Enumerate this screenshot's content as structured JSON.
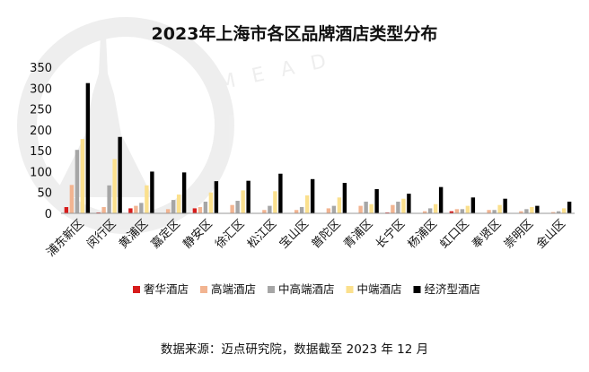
{
  "watermark": {
    "text": "M E A D",
    "shape": "tower-silhouette"
  },
  "source_note": "数据来源：迈点研究院，数据截至 2023 年 12 月",
  "chart_data": {
    "type": "bar",
    "title": "2023年上海市各区品牌酒店类型分布",
    "xlabel": "",
    "ylabel": "",
    "ylim": [
      0,
      350
    ],
    "yticks": [
      0,
      50,
      100,
      150,
      200,
      250,
      300,
      350
    ],
    "grid": false,
    "legend_position": "bottom",
    "categories": [
      "浦东新区",
      "闵行区",
      "黄浦区",
      "嘉定区",
      "静安区",
      "徐汇区",
      "松江区",
      "宝山区",
      "普陀区",
      "青浦区",
      "长宁区",
      "杨浦区",
      "虹口区",
      "奉贤区",
      "崇明区",
      "金山区"
    ],
    "series": [
      {
        "name": "奢华酒店",
        "color": "#d71c1c",
        "values": [
          15,
          2,
          12,
          1,
          12,
          1,
          1,
          1,
          1,
          1,
          2,
          1,
          5,
          1,
          1,
          1
        ]
      },
      {
        "name": "高端酒店",
        "color": "#f2b491",
        "values": [
          68,
          15,
          18,
          10,
          15,
          20,
          8,
          8,
          12,
          18,
          20,
          5,
          10,
          8,
          5,
          3
        ]
      },
      {
        "name": "中高端酒店",
        "color": "#a6a6a6",
        "values": [
          152,
          67,
          25,
          32,
          28,
          30,
          18,
          15,
          18,
          28,
          28,
          12,
          10,
          8,
          10,
          5
        ]
      },
      {
        "name": "中端酒店",
        "color": "#fbe08d",
        "values": [
          178,
          130,
          67,
          45,
          50,
          55,
          53,
          43,
          38,
          22,
          35,
          22,
          18,
          20,
          15,
          12
        ]
      },
      {
        "name": "经济型酒店",
        "color": "#000000",
        "values": [
          312,
          183,
          100,
          98,
          77,
          78,
          95,
          82,
          73,
          58,
          47,
          63,
          38,
          35,
          18,
          28
        ]
      }
    ]
  }
}
